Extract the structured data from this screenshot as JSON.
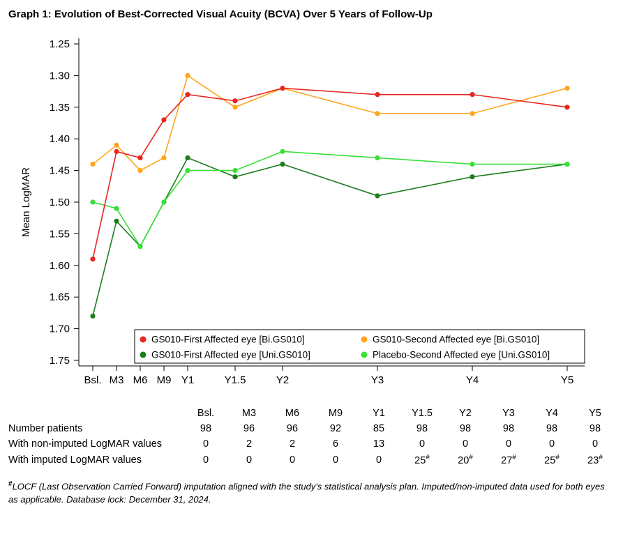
{
  "title": "Graph 1: Evolution of Best-Corrected Visual Acuity (BCVA) Over 5 Years of Follow-Up",
  "chart_data": {
    "type": "line",
    "title": "",
    "xlabel": "",
    "ylabel": "Mean LogMAR",
    "y_ticks": [
      1.25,
      1.3,
      1.35,
      1.4,
      1.45,
      1.5,
      1.55,
      1.6,
      1.65,
      1.7,
      1.75
    ],
    "ylim": [
      1.25,
      1.75
    ],
    "y_axis_inverted": true,
    "grid": false,
    "legend_position": "inside-bottom",
    "categories": [
      "Bsl.",
      "M3",
      "M6",
      "M9",
      "Y1",
      "Y1.5",
      "Y2",
      "Y3",
      "Y4",
      "Y5"
    ],
    "x_months": [
      0,
      3,
      6,
      9,
      12,
      18,
      24,
      36,
      48,
      60
    ],
    "series": [
      {
        "name": "GS010-First Affected eye [Bi.GS010]",
        "color": "#e8251f",
        "values": [
          1.59,
          1.42,
          1.43,
          1.37,
          1.33,
          1.34,
          1.32,
          1.33,
          1.33,
          1.35
        ]
      },
      {
        "name": "GS010-Second Affected eye [Bi.GS010]",
        "color": "#ffa51f",
        "values": [
          1.44,
          1.41,
          1.45,
          1.43,
          1.3,
          1.35,
          1.32,
          1.36,
          1.36,
          1.32
        ]
      },
      {
        "name": "GS010-First Affected eye [Uni.GS010]",
        "color": "#1d7d1d",
        "values": [
          1.68,
          1.53,
          1.57,
          1.5,
          1.43,
          1.46,
          1.44,
          1.49,
          1.46,
          1.44
        ]
      },
      {
        "name": "Placebo-Second Affected eye [Uni.GS010]",
        "color": "#37e037",
        "values": [
          1.5,
          1.51,
          1.57,
          1.5,
          1.45,
          1.45,
          1.42,
          1.43,
          1.44,
          1.44
        ]
      }
    ]
  },
  "table": {
    "columns": [
      "Bsl.",
      "M3",
      "M6",
      "M9",
      "Y1",
      "Y1.5",
      "Y2",
      "Y3",
      "Y4",
      "Y5"
    ],
    "rows": [
      {
        "label": "Number patients",
        "values": [
          "98",
          "96",
          "96",
          "92",
          "85",
          "98",
          "98",
          "98",
          "98",
          "98"
        ]
      },
      {
        "label": "With non-imputed LogMAR values",
        "values": [
          "0",
          "2",
          "2",
          "6",
          "13",
          "0",
          "0",
          "0",
          "0",
          "0"
        ]
      },
      {
        "label": "With imputed LogMAR values",
        "values": [
          "0",
          "0",
          "0",
          "0",
          "0",
          "25#",
          "20#",
          "27#",
          "25#",
          "23#"
        ]
      }
    ]
  },
  "footnote": {
    "marker": "#",
    "text": "LOCF (Last Observation Carried Forward) imputation aligned with the study's statistical analysis plan. Imputed/non-imputed data used for both eyes as applicable. Database lock: December 31, 2024."
  }
}
